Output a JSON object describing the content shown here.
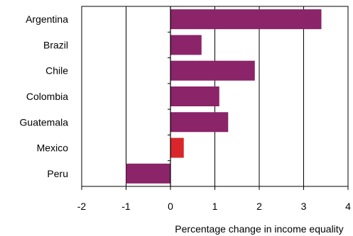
{
  "chart_data": {
    "type": "bar",
    "orientation": "horizontal",
    "categories": [
      "Argentina",
      "Brazil",
      "Chile",
      "Colombia",
      "Guatemala",
      "Mexico",
      "Peru"
    ],
    "values": [
      3.4,
      0.7,
      1.9,
      1.1,
      1.3,
      0.3,
      -1.0
    ],
    "bar_colors": [
      "#8b2469",
      "#8b2469",
      "#8b2469",
      "#8b2469",
      "#8b2469",
      "#d8262a",
      "#8b2469"
    ],
    "xlabel": "Percentage change in income equality",
    "ylabel": "",
    "title": "",
    "xlim": [
      -2,
      4
    ],
    "xticks": [
      "-2",
      "-1",
      "0",
      "1",
      "2",
      "3",
      "4"
    ],
    "grid": "vertical",
    "legend": "none"
  }
}
